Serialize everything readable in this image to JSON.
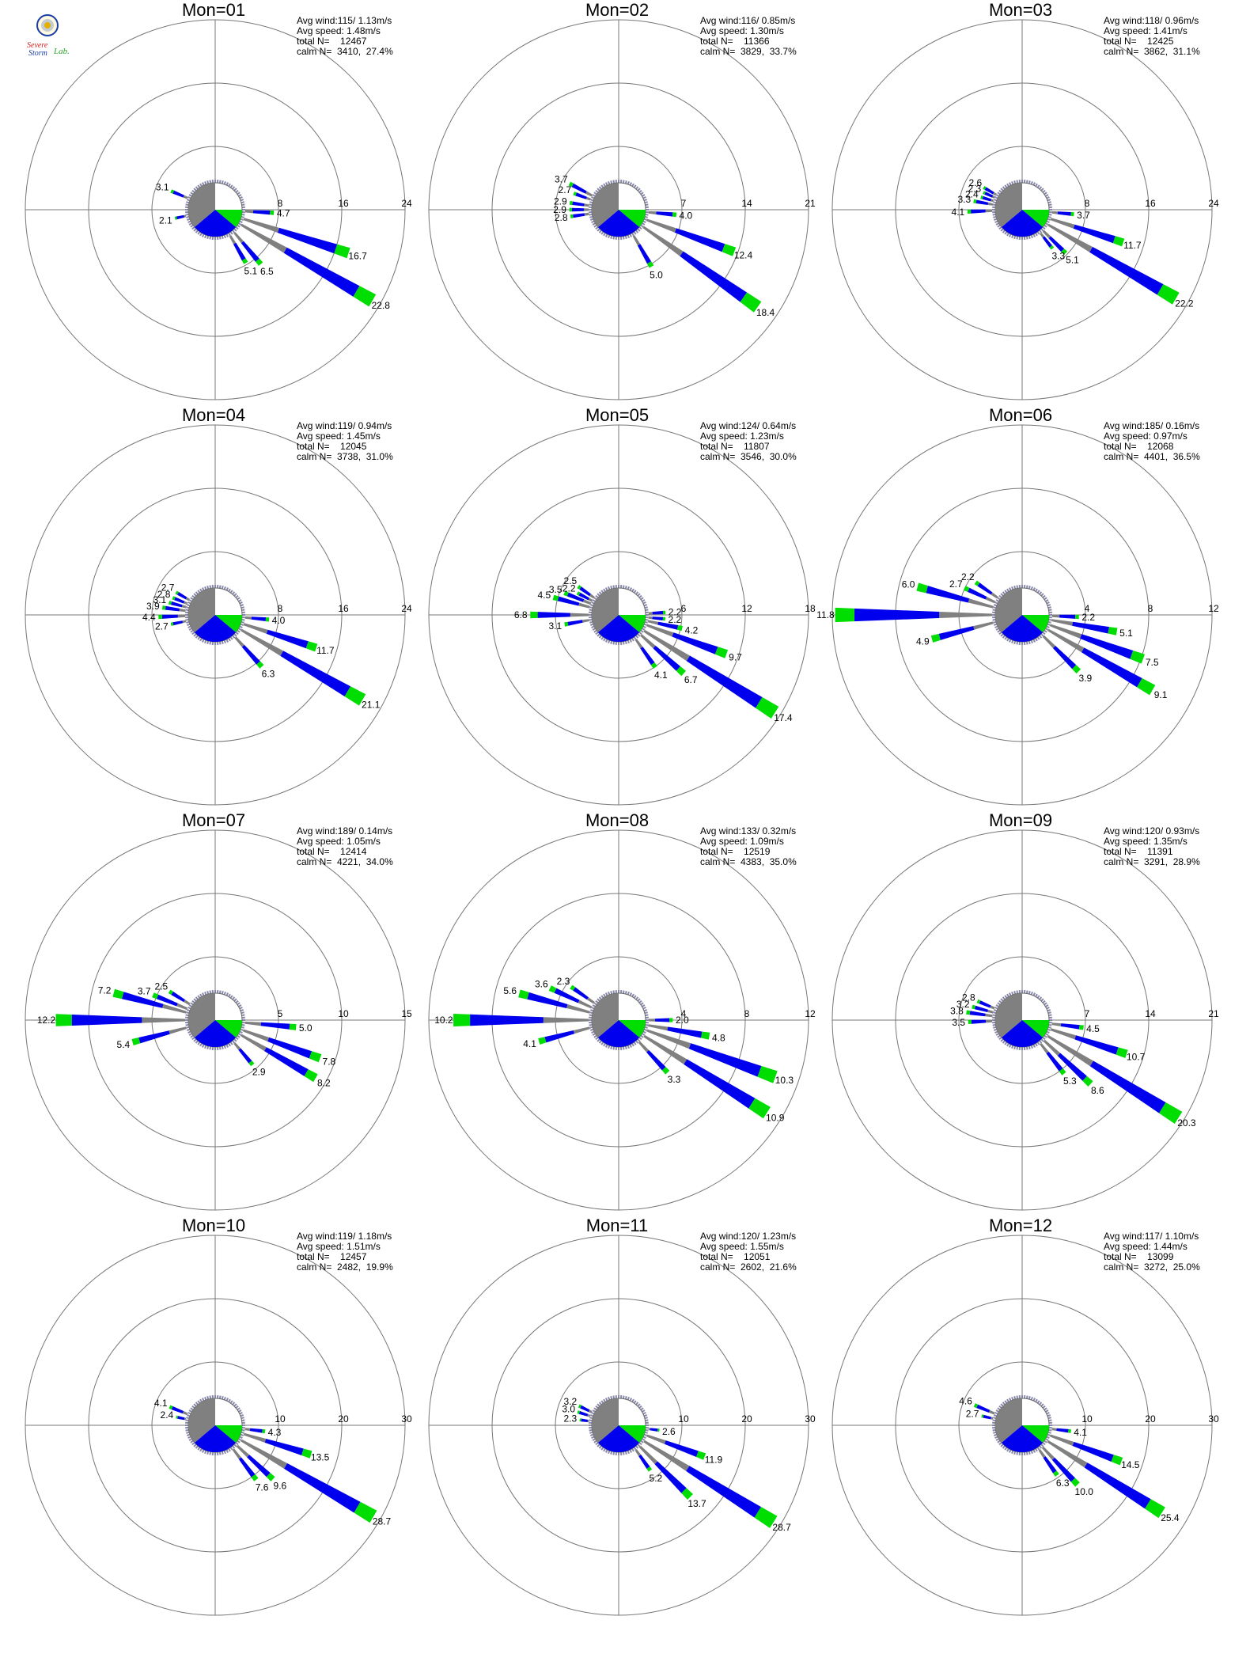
{
  "logo": {
    "line1": "Severe",
    "line2": "Storm",
    "line3": "Lab.",
    "colors": [
      "#d0201c",
      "#1a3ca8",
      "#2aa52a"
    ]
  },
  "colors": {
    "low": "#808080",
    "mid": "#0000ee",
    "high": "#00dd00",
    "top": "#ff8000"
  },
  "chart_data": [
    {
      "type": "rose",
      "title": "Mon=01",
      "ring_labels": [
        "8",
        "16",
        "24"
      ],
      "stats": {
        "avg_wind": "Avg wind:115/ 1.13m/s",
        "avg_speed": "Avg speed: 1.48m/s",
        "total": "total N=    12467",
        "calm": "calm N=  3410,  27.4%"
      },
      "petals": [
        {
          "deg": 93,
          "value": 4.7
        },
        {
          "deg": 108,
          "value": 16.7
        },
        {
          "deg": 120,
          "value": 22.8
        },
        {
          "deg": 140,
          "value": 6.5
        },
        {
          "deg": 150,
          "value": 5.1
        },
        {
          "deg": 258,
          "value": 2.1
        },
        {
          "deg": 293,
          "value": 3.1
        }
      ]
    },
    {
      "type": "rose",
      "title": "Mon=02",
      "ring_labels": [
        "7",
        "14",
        "21"
      ],
      "stats": {
        "avg_wind": "Avg wind:116/ 0.85m/s",
        "avg_speed": "Avg speed: 1.30m/s",
        "total": "total N=    11366",
        "calm": "calm N=  3829,  33.7%"
      },
      "petals": [
        {
          "deg": 95,
          "value": 4.0
        },
        {
          "deg": 110,
          "value": 12.4
        },
        {
          "deg": 125,
          "value": 18.4
        },
        {
          "deg": 150,
          "value": 5.0
        },
        {
          "deg": 262,
          "value": 2.8
        },
        {
          "deg": 270,
          "value": 2.9
        },
        {
          "deg": 278,
          "value": 2.9
        },
        {
          "deg": 290,
          "value": 2.7
        },
        {
          "deg": 298,
          "value": 3.7
        }
      ]
    },
    {
      "type": "rose",
      "title": "Mon=03",
      "ring_labels": [
        "8",
        "16",
        "24"
      ],
      "stats": {
        "avg_wind": "Avg wind:118/ 0.96m/s",
        "avg_speed": "Avg speed: 1.41m/s",
        "total": "total N=    12425",
        "calm": "calm N=  3862,  31.1%"
      },
      "petals": [
        {
          "deg": 95,
          "value": 3.7
        },
        {
          "deg": 108,
          "value": 11.7
        },
        {
          "deg": 120,
          "value": 22.2
        },
        {
          "deg": 135,
          "value": 5.1
        },
        {
          "deg": 142,
          "value": 3.3
        },
        {
          "deg": 268,
          "value": 4.1
        },
        {
          "deg": 280,
          "value": 3.3
        },
        {
          "deg": 287,
          "value": 2.4
        },
        {
          "deg": 294,
          "value": 2.3
        },
        {
          "deg": 300,
          "value": 2.6
        }
      ]
    },
    {
      "type": "rose",
      "title": "Mon=04",
      "ring_labels": [
        "8",
        "16",
        "24"
      ],
      "stats": {
        "avg_wind": "Avg wind:119/ 0.94m/s",
        "avg_speed": "Avg speed: 1.45m/s",
        "total": "total N=    12045",
        "calm": "calm N=  3738,  31.0%"
      },
      "petals": [
        {
          "deg": 95,
          "value": 4.0
        },
        {
          "deg": 108,
          "value": 11.7
        },
        {
          "deg": 120,
          "value": 21.1
        },
        {
          "deg": 138,
          "value": 6.3
        },
        {
          "deg": 258,
          "value": 2.7
        },
        {
          "deg": 268,
          "value": 4.4
        },
        {
          "deg": 278,
          "value": 3.9
        },
        {
          "deg": 285,
          "value": 3.1
        },
        {
          "deg": 292,
          "value": 2.8
        },
        {
          "deg": 300,
          "value": 2.7
        }
      ]
    },
    {
      "type": "rose",
      "title": "Mon=05",
      "ring_labels": [
        "6",
        "12",
        "18"
      ],
      "stats": {
        "avg_wind": "Avg wind:124/ 0.64m/s",
        "avg_speed": "Avg speed: 1.23m/s",
        "total": "total N=    11807",
        "calm": "calm N=  3546,  30.0%"
      },
      "petals": [
        {
          "deg": 87,
          "value": 2.2
        },
        {
          "deg": 95,
          "value": 2.2
        },
        {
          "deg": 102,
          "value": 4.2
        },
        {
          "deg": 110,
          "value": 9.7
        },
        {
          "deg": 122,
          "value": 17.4
        },
        {
          "deg": 132,
          "value": 6.7
        },
        {
          "deg": 145,
          "value": 4.1
        },
        {
          "deg": 260,
          "value": 3.1
        },
        {
          "deg": 270,
          "value": 6.8
        },
        {
          "deg": 285,
          "value": 4.5
        },
        {
          "deg": 292,
          "value": 3.5
        },
        {
          "deg": 298,
          "value": 2.2
        },
        {
          "deg": 305,
          "value": 2.5
        }
      ]
    },
    {
      "type": "rose",
      "title": "Mon=06",
      "ring_labels": [
        "4",
        "8",
        "12"
      ],
      "stats": {
        "avg_wind": "Avg wind:185/ 0.16m/s",
        "avg_speed": "Avg speed: 0.97m/s",
        "total": "total N=    12068",
        "calm": "calm N=  4401,  36.5%"
      },
      "petals": [
        {
          "deg": 92,
          "value": 2.2
        },
        {
          "deg": 100,
          "value": 5.1
        },
        {
          "deg": 110,
          "value": 7.5
        },
        {
          "deg": 120,
          "value": 9.1
        },
        {
          "deg": 135,
          "value": 3.9
        },
        {
          "deg": 255,
          "value": 4.9
        },
        {
          "deg": 270,
          "value": 11.8
        },
        {
          "deg": 285,
          "value": 6.0
        },
        {
          "deg": 295,
          "value": 2.7
        },
        {
          "deg": 305,
          "value": 2.2
        }
      ]
    },
    {
      "type": "rose",
      "title": "Mon=07",
      "ring_labels": [
        "5",
        "10",
        "15"
      ],
      "stats": {
        "avg_wind": "Avg wind:189/ 0.14m/s",
        "avg_speed": "Avg speed: 1.05m/s",
        "total": "total N=    12414",
        "calm": "calm N=  4221,  34.0%"
      },
      "petals": [
        {
          "deg": 95,
          "value": 5.0
        },
        {
          "deg": 110,
          "value": 7.8
        },
        {
          "deg": 120,
          "value": 8.2
        },
        {
          "deg": 140,
          "value": 2.9
        },
        {
          "deg": 255,
          "value": 5.4
        },
        {
          "deg": 270,
          "value": 12.2
        },
        {
          "deg": 285,
          "value": 7.2
        },
        {
          "deg": 292,
          "value": 3.7
        },
        {
          "deg": 302,
          "value": 2.5
        }
      ]
    },
    {
      "type": "rose",
      "title": "Mon=08",
      "ring_labels": [
        "4",
        "8",
        "12"
      ],
      "stats": {
        "avg_wind": "Avg wind:133/ 0.32m/s",
        "avg_speed": "Avg speed: 1.09m/s",
        "total": "total N=    12519",
        "calm": "calm N=  4383,  35.0%"
      },
      "petals": [
        {
          "deg": 90,
          "value": 2.0
        },
        {
          "deg": 100,
          "value": 4.8
        },
        {
          "deg": 110,
          "value": 10.3
        },
        {
          "deg": 122,
          "value": 10.9
        },
        {
          "deg": 137,
          "value": 3.3
        },
        {
          "deg": 255,
          "value": 4.1
        },
        {
          "deg": 270,
          "value": 10.2
        },
        {
          "deg": 285,
          "value": 5.6
        },
        {
          "deg": 295,
          "value": 3.6
        },
        {
          "deg": 305,
          "value": 2.3
        }
      ]
    },
    {
      "type": "rose",
      "title": "Mon=09",
      "ring_labels": [
        "7",
        "14",
        "21"
      ],
      "stats": {
        "avg_wind": "Avg wind:120/ 0.93m/s",
        "avg_speed": "Avg speed: 1.35m/s",
        "total": "total N=    11391",
        "calm": "calm N=  3291,  28.9%"
      },
      "petals": [
        {
          "deg": 97,
          "value": 4.5
        },
        {
          "deg": 108,
          "value": 10.7
        },
        {
          "deg": 122,
          "value": 20.3
        },
        {
          "deg": 133,
          "value": 8.6
        },
        {
          "deg": 142,
          "value": 5.3
        },
        {
          "deg": 268,
          "value": 3.5
        },
        {
          "deg": 278,
          "value": 3.8
        },
        {
          "deg": 285,
          "value": 3.2
        },
        {
          "deg": 293,
          "value": 2.8
        }
      ]
    },
    {
      "type": "rose",
      "title": "Mon=10",
      "ring_labels": [
        "10",
        "20",
        "30"
      ],
      "stats": {
        "avg_wind": "Avg wind:119/ 1.18m/s",
        "avg_speed": "Avg speed: 1.51m/s",
        "total": "total N=    12457",
        "calm": "calm N=  2482,  19.9%"
      },
      "petals": [
        {
          "deg": 97,
          "value": 4.3
        },
        {
          "deg": 107,
          "value": 13.5
        },
        {
          "deg": 120,
          "value": 28.7
        },
        {
          "deg": 133,
          "value": 9.6
        },
        {
          "deg": 143,
          "value": 7.6
        },
        {
          "deg": 282,
          "value": 2.4
        },
        {
          "deg": 292,
          "value": 4.1
        }
      ]
    },
    {
      "type": "rose",
      "title": "Mon=11",
      "ring_labels": [
        "10",
        "20",
        "30"
      ],
      "stats": {
        "avg_wind": "Avg wind:120/ 1.23m/s",
        "avg_speed": "Avg speed: 1.55m/s",
        "total": "total N=    12051",
        "calm": "calm N=  2602,  21.6%"
      },
      "petals": [
        {
          "deg": 97,
          "value": 2.6
        },
        {
          "deg": 110,
          "value": 11.9
        },
        {
          "deg": 122,
          "value": 28.7
        },
        {
          "deg": 135,
          "value": 13.7
        },
        {
          "deg": 145,
          "value": 5.2
        },
        {
          "deg": 278,
          "value": 2.3
        },
        {
          "deg": 288,
          "value": 3.0
        },
        {
          "deg": 296,
          "value": 3.2
        }
      ]
    },
    {
      "type": "rose",
      "title": "Mon=12",
      "ring_labels": [
        "10",
        "20",
        "30"
      ],
      "stats": {
        "avg_wind": "Avg wind:117/ 1.10m/s",
        "avg_speed": "Avg speed: 1.44m/s",
        "total": "total N=    13099",
        "calm": "calm N=  3272,  25.0%"
      },
      "petals": [
        {
          "deg": 97,
          "value": 4.1
        },
        {
          "deg": 110,
          "value": 14.5
        },
        {
          "deg": 122,
          "value": 25.4
        },
        {
          "deg": 137,
          "value": 10.0
        },
        {
          "deg": 145,
          "value": 6.3
        },
        {
          "deg": 283,
          "value": 2.7
        },
        {
          "deg": 293,
          "value": 4.6
        }
      ]
    }
  ]
}
